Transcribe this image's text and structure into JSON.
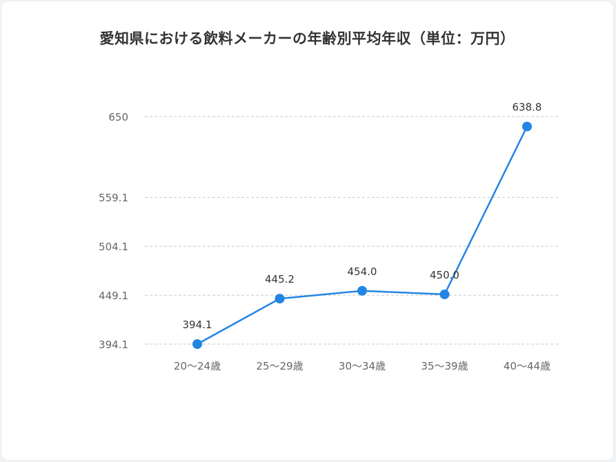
{
  "chart_data": {
    "type": "line",
    "title": "愛知県における飲料メーカーの年齢別平均年収（単位：万円）",
    "xlabel": "",
    "ylabel": "",
    "categories": [
      "20〜24歳",
      "25〜29歳",
      "30〜34歳",
      "35〜39歳",
      "40〜44歳"
    ],
    "values": [
      394.1,
      445.2,
      454.0,
      450.0,
      638.8
    ],
    "data_labels": [
      "394.1",
      "445.2",
      "454.0",
      "450.0",
      "638.8"
    ],
    "y_ticks": [
      394.1,
      449.1,
      504.1,
      559.1,
      650
    ],
    "y_tick_labels": [
      "394.1",
      "449.1",
      "504.1",
      "559.1",
      "650"
    ],
    "ylim": [
      394.1,
      650
    ],
    "grid": true,
    "grid_style": "dashed",
    "legend": "none",
    "colors": {
      "line": "#2285e3",
      "grid": "#c8c8c8",
      "tick_text": "#666666",
      "label_text": "#333333",
      "title_text": "#333333"
    }
  }
}
